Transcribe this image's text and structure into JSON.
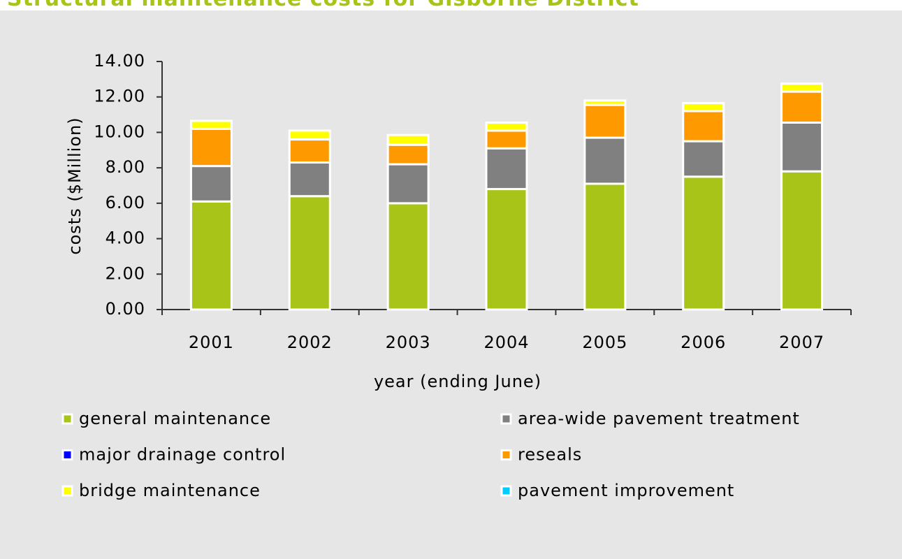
{
  "chart_data": {
    "type": "stacked_bar",
    "title": "Structural maintenance costs for Gisborne District",
    "x_label": "year (ending June)",
    "y_label": "costs ($Million)",
    "categories": [
      "2001",
      "2002",
      "2003",
      "2004",
      "2005",
      "2006",
      "2007"
    ],
    "series": [
      {
        "name": "general maintenance",
        "color": "#a8c418",
        "values": [
          6.1,
          6.4,
          6.0,
          6.8,
          7.1,
          7.5,
          7.8
        ]
      },
      {
        "name": "area-wide pavement treatment",
        "color": "#808080",
        "values": [
          2.0,
          1.9,
          2.2,
          2.3,
          2.6,
          2.0,
          2.75
        ]
      },
      {
        "name": "major drainage control",
        "color": "#0000ff",
        "values": [
          0,
          0,
          0,
          0,
          0,
          0,
          0
        ]
      },
      {
        "name": "reseals",
        "color": "#ff9900",
        "values": [
          2.1,
          1.3,
          1.1,
          1.0,
          1.85,
          1.7,
          1.75
        ]
      },
      {
        "name": "bridge maintenance",
        "color": "#ffff00",
        "values": [
          0.45,
          0.5,
          0.55,
          0.45,
          0.25,
          0.45,
          0.45
        ]
      },
      {
        "name": "pavement improvement",
        "color": "#00ccff",
        "values": [
          0,
          0,
          0,
          0,
          0,
          0,
          0
        ]
      }
    ],
    "ylim": [
      0,
      14
    ],
    "yticks": [
      {
        "value": 0,
        "label": "0.00"
      },
      {
        "value": 2,
        "label": "2.00"
      },
      {
        "value": 4,
        "label": "4.00"
      },
      {
        "value": 6,
        "label": "6.00"
      },
      {
        "value": 8,
        "label": "8.00"
      },
      {
        "value": 10,
        "label": "10.00"
      },
      {
        "value": 12,
        "label": "12.00"
      },
      {
        "value": 14,
        "label": "14.00"
      }
    ],
    "legend": "bottom"
  }
}
